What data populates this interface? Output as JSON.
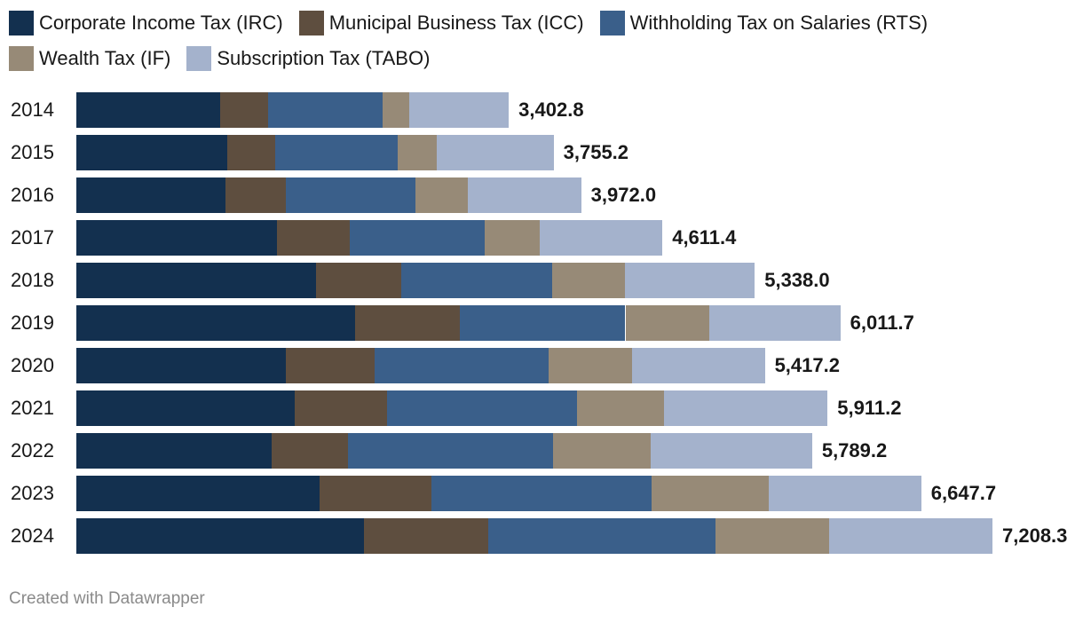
{
  "chart_data": {
    "type": "bar",
    "orientation": "horizontal",
    "stacked": true,
    "categories": [
      "2014",
      "2015",
      "2016",
      "2017",
      "2018",
      "2019",
      "2020",
      "2021",
      "2022",
      "2023",
      "2024"
    ],
    "series": [
      {
        "name": "Corporate Income Tax (IRC)",
        "color": "#13304f",
        "values": [
          1129.6,
          1186.6,
          1174.8,
          1579.0,
          1886.5,
          2195.0,
          1647.5,
          1718.8,
          1538.2,
          1913.3,
          2263.1
        ]
      },
      {
        "name": "Municipal Business Tax (ICC)",
        "color": "#5e4e3f",
        "values": [
          376.5,
          376.9,
          475.5,
          572.9,
          670.7,
          824.9,
          698.1,
          726.7,
          601.3,
          879.9,
          977.9
        ]
      },
      {
        "name": "Withholding Tax on Salaries (RTS)",
        "color": "#3a5f8a",
        "values": [
          906.5,
          963.2,
          1021.0,
          1062.0,
          1187.8,
          1300.2,
          1368.3,
          1495.2,
          1608.2,
          1731.8,
          1788.2
        ]
      },
      {
        "name": "Wealth Tax (IF)",
        "color": "#978a77",
        "values": [
          209.2,
          307.1,
          405.6,
          433.2,
          572.9,
          657.1,
          656.2,
          684.7,
          769.1,
          921.8,
          894.1
        ]
      },
      {
        "name": "Subscription Tax (TABO)",
        "color": "#a4b2cc",
        "values": [
          781.0,
          921.4,
          895.1,
          964.3,
          1020.1,
          1034.5,
          1047.1,
          1285.8,
          1272.4,
          1200.9,
          1285.0
        ]
      }
    ],
    "totals": [
      "3,402.8",
      "3,755.2",
      "3,972.0",
      "4,611.4",
      "5,338.0",
      "6,011.7",
      "5,417.2",
      "5,911.2",
      "5,789.2",
      "6,647.7",
      "7,208.3"
    ],
    "xlim": [
      0,
      7208.3
    ],
    "grid": false,
    "legend_position": "top"
  },
  "footer": "Created with Datawrapper"
}
